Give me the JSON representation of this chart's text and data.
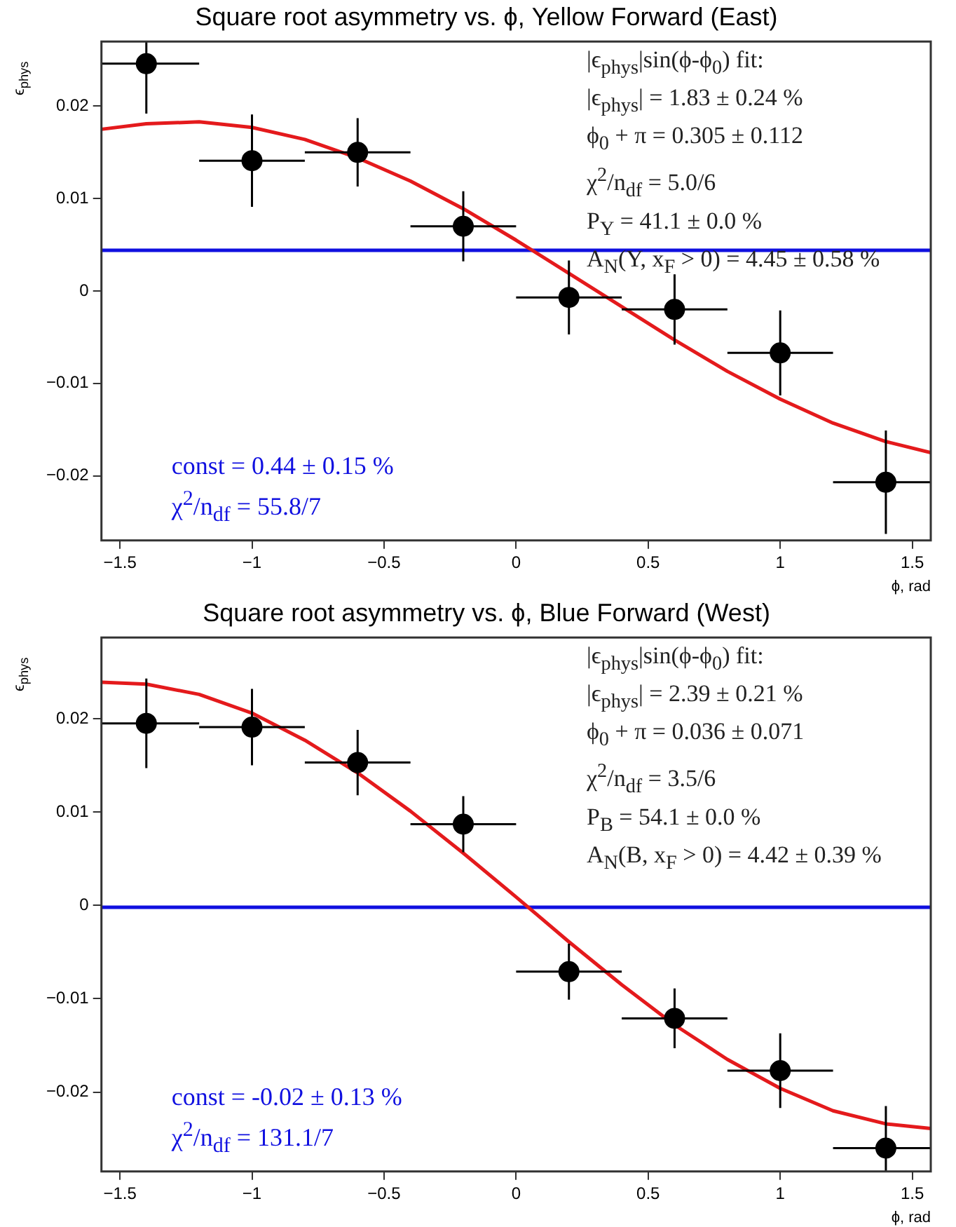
{
  "chart_data": [
    {
      "type": "scatter",
      "title": "Square root asymmetry vs. ϕ, Yellow Forward (East)",
      "xlabel": "ϕ, rad",
      "ylabel": "ϵ$_{phys}$",
      "xlim": [
        -1.57,
        1.57
      ],
      "ylim": [
        -0.027,
        0.027
      ],
      "xticks": [
        {
          "value": -1.5,
          "label": "−1.5"
        },
        {
          "value": -1,
          "label": "−1"
        },
        {
          "value": -0.5,
          "label": "−0.5"
        },
        0,
        0.5,
        1,
        1.5
      ],
      "yticks": [
        -0.02,
        -0.01,
        0,
        0.01,
        0.02
      ],
      "grid": false,
      "legend": false,
      "series": [
        {
          "marker": "circle",
          "color": "#000000",
          "x": [
            -1.4,
            -1.0,
            -0.6,
            -0.2,
            0.2,
            0.6,
            1.0,
            1.4
          ],
          "values": [
            0.0246,
            0.0141,
            0.015,
            0.007,
            -0.0007,
            -0.002,
            -0.0067,
            -0.0207
          ],
          "errors": [
            [
              0.0192,
              0.027
            ],
            0.005,
            0.0037,
            0.0038,
            0.004,
            0.0038,
            0.0046,
            0.0056
          ],
          "xerrors": [
            [
              -1.57,
              -1.2
            ],
            0.2,
            0.2,
            0.2,
            0.2,
            0.2,
            0.2,
            [
              1.2,
              1.57
            ]
          ]
        },
        {
          "type": "line",
          "marker": "none",
          "color": "#e41a1c",
          "x": [
            -1.57,
            -1.4,
            -1.2,
            -1.0,
            -0.8,
            -0.6,
            -0.4,
            -0.2,
            0,
            0.2,
            0.4,
            0.6,
            0.8,
            1.0,
            1.2,
            1.4,
            1.57
          ],
          "values": [
            0.0175,
            0.0181,
            0.0183,
            0.0177,
            0.0164,
            0.0144,
            0.0119,
            0.0089,
            0.0055,
            0.0019,
            -0.0017,
            -0.0053,
            -0.0087,
            -0.0117,
            -0.0143,
            -0.0163,
            -0.0175
          ]
        }
      ],
      "ref_lines": [
        {
          "axis": "y",
          "value": 0.0044,
          "label": "const = 0.44 ± 0.15 %\nχ$^{2}$/n$_{df}$ = 55.8/7",
          "color": "#1010e0"
        }
      ],
      "annotations": [
        "|ϵ$_{phys}$|sin(ϕ-ϕ$_{0}$) fit:",
        "|ϵ$_{phys}$| = 1.83 ± 0.24 %",
        "ϕ$_{0}$ + π = 0.305 ± 0.112",
        "χ$^{2}$/n$_{df}$ = 5.0/6",
        "P$_{Y}$ = 41.1 ± 0.0 %",
        "A$_{N}$(Y, x$_{F}$ > 0) = 4.45 ± 0.58 %"
      ]
    },
    {
      "type": "scatter",
      "title": "Square root asymmetry vs. ϕ, Blue Forward (West)",
      "xlabel": "ϕ, rad",
      "ylabel": "ϵ$_{phys}$",
      "xlim": [
        -1.57,
        1.57
      ],
      "ylim": [
        -0.0285,
        0.0287
      ],
      "xticks": [
        {
          "value": -1.5,
          "label": "−1.5"
        },
        {
          "value": -1,
          "label": "−1"
        },
        {
          "value": -0.5,
          "label": "−0.5"
        },
        0,
        0.5,
        1,
        1.5
      ],
      "yticks": [
        -0.02,
        -0.01,
        0,
        0.01,
        0.02
      ],
      "grid": false,
      "legend": false,
      "series": [
        {
          "marker": "circle",
          "color": "#000000",
          "x": [
            -1.4,
            -1.0,
            -0.6,
            -0.2,
            0.2,
            0.6,
            1.0,
            1.4
          ],
          "values": [
            0.0195,
            0.0191,
            0.0153,
            0.0087,
            -0.0071,
            -0.0121,
            -0.0177,
            -0.026
          ],
          "errors": [
            0.0048,
            0.0041,
            0.0035,
            0.003,
            0.003,
            0.0032,
            0.004,
            [
              -0.0285,
              -0.0215
            ]
          ],
          "xerrors": [
            [
              -1.57,
              -1.2
            ],
            0.2,
            0.2,
            0.2,
            0.2,
            0.2,
            0.2,
            [
              1.2,
              1.57
            ]
          ]
        },
        {
          "type": "line",
          "marker": "none",
          "color": "#e41a1c",
          "x": [
            -1.57,
            -1.4,
            -1.2,
            -1.0,
            -0.8,
            -0.6,
            -0.4,
            -0.2,
            0,
            0.2,
            0.4,
            0.6,
            0.8,
            1.0,
            1.2,
            1.4,
            1.57
          ],
          "values": [
            0.0239,
            0.0237,
            0.0226,
            0.0206,
            0.0177,
            0.0142,
            0.0101,
            0.0056,
            0.0009,
            -0.0039,
            -0.0085,
            -0.0128,
            -0.0165,
            -0.0196,
            -0.022,
            -0.0234,
            -0.0239
          ]
        }
      ],
      "ref_lines": [
        {
          "axis": "y",
          "value": -0.0002,
          "label": "const = -0.02 ± 0.13 %\nχ$^{2}$/n$_{df}$ = 131.1/7",
          "color": "#1010e0"
        }
      ],
      "annotations": [
        "|ϵ$_{phys}$|sin(ϕ-ϕ$_{0}$) fit:",
        "|ϵ$_{phys}$| = 2.39 ± 0.21 %",
        "ϕ$_{0}$ + π = 0.036 ± 0.071",
        "χ$^{2}$/n$_{df}$ = 3.5/6",
        "P$_{B}$ = 54.1 ± 0.0 %",
        "A$_{N}$(B, x$_{F}$ > 0) = 4.42 ± 0.39 %"
      ]
    }
  ]
}
